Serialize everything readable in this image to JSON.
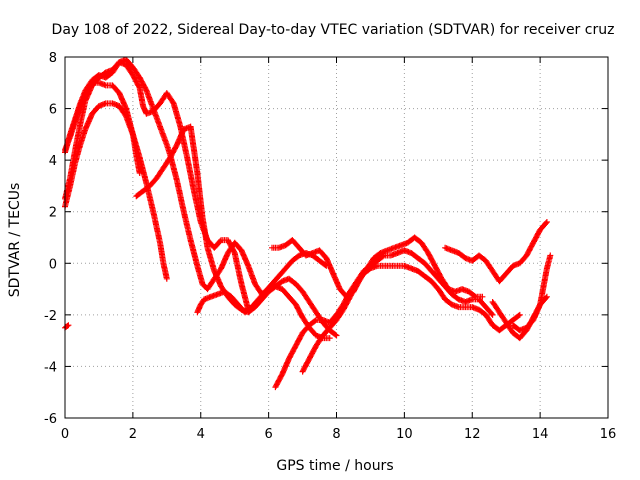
{
  "chart_data": {
    "type": "scatter",
    "title": "Day 108 of 2022, Sidereal Day-to-day VTEC variation (SDTVAR) for receiver cruz",
    "xlabel": "GPS time / hours",
    "ylabel": "SDTVAR / TECUs",
    "xlim": [
      0,
      16
    ],
    "ylim": [
      -6,
      8
    ],
    "xticks": [
      "0",
      "2",
      "4",
      "6",
      "8",
      "10",
      "12",
      "14",
      "16"
    ],
    "yticks": [
      "-6",
      "-4",
      "-2",
      "0",
      "2",
      "4",
      "6",
      "8"
    ],
    "grid": true,
    "marker": "+",
    "color": "#ff0000",
    "series": [
      {
        "x": [
          0.0,
          0.1
        ],
        "y": [
          -2.5,
          -2.4
        ]
      },
      {
        "x": [
          0.0,
          0.15,
          0.3,
          0.45,
          0.6,
          0.8,
          1.0,
          1.2,
          1.4,
          1.6,
          1.8,
          2.0,
          2.2,
          2.4,
          2.6,
          2.8,
          3.0,
          3.1,
          3.3,
          3.5,
          3.7,
          3.9,
          4.05,
          4.2,
          4.4,
          4.6,
          4.8,
          5.0,
          5.2,
          5.4,
          5.6,
          5.8,
          6.0,
          6.2,
          6.4,
          6.6,
          6.8,
          7.0,
          7.2,
          7.4,
          7.6,
          7.8
        ],
        "y": [
          2.5,
          3.3,
          4.4,
          5.4,
          6.3,
          6.9,
          7.2,
          7.4,
          7.5,
          7.8,
          7.9,
          7.6,
          7.2,
          6.7,
          6.0,
          5.3,
          4.6,
          4.2,
          3.2,
          2.0,
          0.9,
          -0.1,
          -0.8,
          -1.0,
          -0.6,
          -0.2,
          0.4,
          0.8,
          0.5,
          -0.1,
          -0.8,
          -1.2,
          -1.0,
          -0.9,
          -1.0,
          -1.3,
          -1.6,
          -2.1,
          -2.5,
          -2.8,
          -2.9,
          -2.9
        ]
      },
      {
        "x": [
          0.0,
          0.15,
          0.3,
          0.45,
          0.6,
          0.8,
          1.0,
          1.2,
          1.4,
          1.6,
          1.8,
          2.0,
          2.2,
          2.3,
          2.4,
          2.6,
          2.8,
          3.0,
          3.2,
          3.4,
          3.6,
          3.8,
          4.0,
          4.2,
          4.4,
          4.6,
          4.8,
          5.0,
          5.2,
          5.4
        ],
        "y": [
          4.3,
          5.0,
          5.6,
          6.2,
          6.7,
          7.1,
          7.3,
          7.2,
          7.4,
          7.8,
          7.7,
          7.3,
          6.8,
          6.1,
          5.8,
          5.9,
          6.2,
          6.6,
          6.2,
          5.3,
          4.1,
          2.8,
          1.6,
          0.9,
          0.6,
          0.9,
          0.9,
          0.4,
          -0.8,
          -1.8
        ]
      },
      {
        "x": [
          0.0,
          0.15,
          0.3,
          0.45,
          0.6,
          0.8,
          1.0,
          1.2,
          1.4,
          1.6,
          1.8,
          2.0,
          2.1,
          2.2
        ],
        "y": [
          4.4,
          4.9,
          5.5,
          6.1,
          6.6,
          7.0,
          7.0,
          6.9,
          6.9,
          6.6,
          6.0,
          5.0,
          4.2,
          3.5
        ]
      },
      {
        "x": [
          0.0,
          0.15,
          0.3,
          0.45,
          0.6,
          0.8,
          1.0,
          1.2,
          1.4,
          1.6,
          1.8,
          2.0,
          2.2,
          2.4,
          2.6,
          2.8,
          2.9,
          3.0
        ],
        "y": [
          2.2,
          3.0,
          3.9,
          4.6,
          5.2,
          5.8,
          6.1,
          6.2,
          6.2,
          6.1,
          5.7,
          5.0,
          4.1,
          3.1,
          2.0,
          0.8,
          0.0,
          -0.6
        ]
      },
      {
        "x": [
          2.1,
          2.3,
          2.5,
          2.7,
          2.9,
          3.1,
          3.3,
          3.5,
          3.7,
          3.9,
          4.05,
          4.2,
          4.4,
          4.6,
          4.8,
          5.0,
          5.2,
          5.4,
          5.6,
          5.8,
          6.0,
          6.2,
          6.4,
          6.6,
          6.8,
          7.0,
          7.2,
          7.4,
          7.6,
          7.8,
          8.0
        ],
        "y": [
          2.6,
          2.8,
          3.0,
          3.3,
          3.7,
          4.1,
          4.6,
          5.2,
          5.3,
          3.5,
          1.8,
          0.6,
          -0.3,
          -0.9,
          -1.3,
          -1.6,
          -1.8,
          -1.9,
          -1.7,
          -1.4,
          -1.1,
          -0.9,
          -0.7,
          -0.6,
          -0.8,
          -1.1,
          -1.5,
          -1.9,
          -2.3,
          -2.6,
          -2.8
        ]
      },
      {
        "x": [
          3.9,
          4.0,
          4.1,
          4.3,
          4.5,
          4.7,
          4.9,
          5.1,
          5.3,
          5.5,
          5.7,
          5.9,
          6.1,
          6.3,
          6.5,
          6.7,
          6.9,
          7.1,
          7.3,
          7.5,
          7.7
        ],
        "y": [
          -1.9,
          -1.6,
          -1.4,
          -1.3,
          -1.2,
          -1.1,
          -1.3,
          -1.6,
          -1.9,
          -1.7,
          -1.4,
          -1.1,
          -0.8,
          -0.5,
          -0.2,
          0.1,
          0.3,
          0.4,
          0.3,
          0.1,
          -0.1
        ]
      },
      {
        "x": [
          6.1,
          6.3,
          6.5,
          6.7,
          6.9,
          7.1,
          7.3,
          7.5,
          7.7,
          7.9,
          8.1,
          8.3,
          8.5,
          8.7,
          8.9,
          9.1,
          9.3,
          9.5,
          9.7,
          9.9,
          10.1,
          10.3,
          10.5,
          10.7,
          10.9,
          11.1,
          11.3,
          11.5,
          11.7,
          11.9,
          12.1,
          12.3
        ],
        "y": [
          0.6,
          0.6,
          0.7,
          0.9,
          0.6,
          0.3,
          0.4,
          0.5,
          0.2,
          -0.4,
          -1.0,
          -1.3,
          -1.1,
          -0.6,
          -0.2,
          0.2,
          0.4,
          0.5,
          0.6,
          0.7,
          0.8,
          1.0,
          0.8,
          0.4,
          -0.1,
          -0.6,
          -1.0,
          -1.1,
          -1.0,
          -1.1,
          -1.3,
          -1.3
        ]
      },
      {
        "x": [
          6.2,
          6.4,
          6.6,
          6.8,
          7.0,
          7.2,
          7.4,
          7.6,
          7.8,
          8.0,
          8.2,
          8.4,
          8.6,
          8.8,
          9.0,
          9.2,
          9.4,
          9.6,
          9.8,
          10.0,
          10.2,
          10.4,
          10.6,
          10.8,
          11.0,
          11.2,
          11.4,
          11.6,
          11.8,
          12.0,
          12.2,
          12.4,
          12.6
        ],
        "y": [
          -4.8,
          -4.3,
          -3.7,
          -3.2,
          -2.7,
          -2.4,
          -2.2,
          -2.2,
          -2.3,
          -2.0,
          -1.6,
          -1.1,
          -0.7,
          -0.3,
          -0.1,
          0.1,
          0.3,
          0.3,
          0.4,
          0.5,
          0.4,
          0.2,
          0.0,
          -0.3,
          -0.6,
          -0.9,
          -1.2,
          -1.4,
          -1.5,
          -1.4,
          -1.4,
          -1.7,
          -2.0
        ]
      },
      {
        "x": [
          7.0,
          7.2,
          7.4,
          7.6,
          7.8,
          8.0,
          8.2,
          8.4,
          8.6,
          8.8,
          9.0,
          9.2,
          9.4,
          9.6,
          9.8,
          10.0,
          10.2,
          10.4,
          10.6,
          10.8,
          11.0,
          11.2,
          11.4,
          11.6,
          11.8,
          12.0,
          12.2,
          12.4,
          12.6,
          12.8,
          13.0,
          13.2,
          13.4
        ],
        "y": [
          -4.2,
          -3.7,
          -3.2,
          -2.8,
          -2.5,
          -2.2,
          -1.8,
          -1.3,
          -0.8,
          -0.4,
          -0.2,
          -0.1,
          -0.1,
          -0.1,
          -0.1,
          -0.1,
          -0.2,
          -0.3,
          -0.5,
          -0.7,
          -1.0,
          -1.4,
          -1.6,
          -1.7,
          -1.7,
          -1.7,
          -1.8,
          -2.0,
          -2.4,
          -2.6,
          -2.4,
          -2.2,
          -2.0
        ]
      },
      {
        "x": [
          11.2,
          11.4,
          11.6,
          11.8,
          12.0,
          12.2,
          12.4,
          12.6,
          12.8,
          13.0,
          13.2,
          13.4,
          13.6,
          13.8,
          14.0,
          14.2
        ],
        "y": [
          0.6,
          0.5,
          0.4,
          0.2,
          0.1,
          0.3,
          0.1,
          -0.3,
          -0.7,
          -0.4,
          -0.1,
          0.0,
          0.3,
          0.8,
          1.3,
          1.6
        ]
      },
      {
        "x": [
          12.6,
          12.8,
          13.0,
          13.2,
          13.4,
          13.6,
          13.8,
          14.0,
          14.2
        ],
        "y": [
          -1.5,
          -1.9,
          -2.3,
          -2.7,
          -2.9,
          -2.6,
          -2.1,
          -1.6,
          -1.3
        ]
      },
      {
        "x": [
          13.2,
          13.4,
          13.6,
          13.8,
          14.0,
          14.1,
          14.2,
          14.3
        ],
        "y": [
          -2.4,
          -2.6,
          -2.5,
          -2.2,
          -1.6,
          -0.9,
          -0.2,
          0.3
        ]
      }
    ]
  }
}
